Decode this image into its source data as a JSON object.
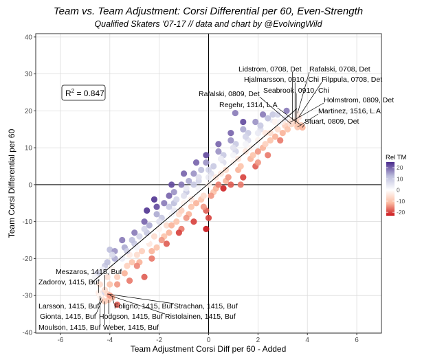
{
  "chart_data": {
    "type": "scatter",
    "title": "Team vs. Team Adjustment: Corsi Differential per 60, Even-Strength",
    "subtitle": "Qualified Skaters '07-17  //  data and chart by @EvolvingWild",
    "xlabel": "Team Adjustment Corsi Diff per 60 - Added",
    "ylabel": "Team Corsi Differential per 60",
    "xlim": [
      -7,
      7
    ],
    "ylim": [
      -40.2,
      40.9
    ],
    "x_ticks": [
      -6,
      -4,
      -2,
      0,
      2,
      4,
      6
    ],
    "y_ticks": [
      -40,
      -30,
      -20,
      -10,
      0,
      10,
      20,
      30,
      40
    ],
    "x_tick_labels": [
      "-6",
      "-4",
      "-2",
      "0",
      "2",
      "4",
      "6"
    ],
    "y_tick_labels": [
      "-40",
      "-30",
      "-20",
      "-10",
      "0",
      "10",
      "20",
      "30",
      "40"
    ],
    "grid": true,
    "annotation": {
      "r2_label": "R",
      "r2_sup": "2",
      "r2_value": " = 0.847"
    },
    "fit_line": {
      "intercept": 0.3,
      "slope": 5.67,
      "x_range": [
        -4.72,
        3.58
      ]
    },
    "legend": {
      "title": "Rel TM",
      "placement": "right",
      "ticks": [
        20,
        10,
        0,
        -10,
        -20
      ],
      "tick_labels": [
        "20",
        "10",
        "0",
        "-10",
        "-20"
      ],
      "range": [
        -23,
        25
      ],
      "colors": {
        "low": "#cb181d",
        "mid_low": "#fcbba1",
        "mid": "#ffffff",
        "mid_high": "#bcbddc",
        "high": "#4a2a8c"
      }
    },
    "point_fields": [
      "x",
      "y",
      "rel_tm"
    ],
    "points": [
      [
        -4.0,
        -17.6,
        12
      ],
      [
        -4.5,
        -24,
        8
      ],
      [
        -4.4,
        -27,
        -6
      ],
      [
        -4.6,
        -25,
        2
      ],
      [
        -4.2,
        -22,
        10
      ],
      [
        -4.1,
        -25,
        -5
      ],
      [
        -4.3,
        -23,
        3
      ],
      [
        -4.0,
        -27,
        -10
      ],
      [
        -4.1,
        -21,
        12
      ],
      [
        -3.8,
        -20,
        14
      ],
      [
        -3.9,
        -23,
        -2
      ],
      [
        -3.7,
        -25,
        -8
      ],
      [
        -3.8,
        -18,
        16
      ],
      [
        -3.6,
        -22,
        0
      ],
      [
        -3.7,
        -27,
        -14
      ],
      [
        -3.9,
        -19,
        7
      ],
      [
        -3.4,
        -17,
        14
      ],
      [
        -3.5,
        -20,
        4
      ],
      [
        -3.3,
        -22,
        -8
      ],
      [
        -3.4,
        -24,
        -12
      ],
      [
        -3.2,
        -19,
        -3
      ],
      [
        -3.5,
        -15,
        18
      ],
      [
        -3.3,
        -18,
        9
      ],
      [
        -3.1,
        -21,
        -10
      ],
      [
        -3.2,
        -26,
        -16
      ],
      [
        -3.0,
        -16,
        10
      ],
      [
        -2.9,
        -19,
        -6
      ],
      [
        -3.0,
        -13,
        18
      ],
      [
        -2.8,
        -21,
        -12
      ],
      [
        -2.9,
        -17,
        2
      ],
      [
        -3.1,
        -15,
        12
      ],
      [
        -2.8,
        -14,
        8
      ],
      [
        -2.7,
        -18,
        -8
      ],
      [
        -2.9,
        -22,
        -15
      ],
      [
        -2.6,
        -25,
        -18
      ],
      [
        -2.5,
        -13,
        10
      ],
      [
        -2.4,
        -16,
        -4
      ],
      [
        -2.6,
        -10,
        20
      ],
      [
        -2.3,
        -18,
        -12
      ],
      [
        -2.5,
        -15,
        0
      ],
      [
        -2.4,
        -11,
        14
      ],
      [
        -2.2,
        -14,
        -6
      ],
      [
        -2.6,
        -12,
        8
      ],
      [
        -2.3,
        -20,
        -16
      ],
      [
        -2.1,
        -17,
        -10
      ],
      [
        -2.5,
        -7,
        24
      ],
      [
        -2.0,
        -12,
        -2
      ],
      [
        -1.9,
        -9,
        10
      ],
      [
        -2.1,
        -6,
        22
      ],
      [
        -1.8,
        -14,
        -10
      ],
      [
        -2.0,
        -10,
        6
      ],
      [
        -1.9,
        -15,
        -14
      ],
      [
        -1.7,
        -11,
        -6
      ],
      [
        -2.1,
        -8,
        14
      ],
      [
        -1.8,
        -5,
        18
      ],
      [
        -1.6,
        -13,
        -12
      ],
      [
        -2.2,
        -4,
        24
      ],
      [
        -1.7,
        -16,
        -18
      ],
      [
        -1.5,
        -8,
        2
      ],
      [
        -1.4,
        -5,
        12
      ],
      [
        -1.6,
        -3,
        20
      ],
      [
        -1.3,
        -10,
        -10
      ],
      [
        -1.5,
        -11,
        -12
      ],
      [
        -1.4,
        -7,
        4
      ],
      [
        -1.2,
        -8,
        -6
      ],
      [
        -1.6,
        -6,
        10
      ],
      [
        -1.3,
        -4,
        8
      ],
      [
        -1.1,
        -12,
        -16
      ],
      [
        -1.5,
        0,
        22
      ],
      [
        -1.2,
        -13,
        -20
      ],
      [
        -1.4,
        -2,
        16
      ],
      [
        -1.0,
        -5,
        -2
      ],
      [
        -0.9,
        -2,
        10
      ],
      [
        -1.1,
        0,
        18
      ],
      [
        -0.8,
        -8,
        -12
      ],
      [
        -1.0,
        -3,
        6
      ],
      [
        -0.9,
        -9,
        -14
      ],
      [
        -0.7,
        -4,
        -4
      ],
      [
        -1.1,
        -7,
        -8
      ],
      [
        -0.8,
        1,
        14
      ],
      [
        -0.6,
        -10,
        -20
      ],
      [
        -1.0,
        3,
        20
      ],
      [
        -0.7,
        -6,
        -10
      ],
      [
        -0.9,
        -1,
        4
      ],
      [
        -0.5,
        -2,
        0
      ],
      [
        -0.4,
        1,
        8
      ],
      [
        -0.6,
        3,
        16
      ],
      [
        -0.3,
        -4,
        -10
      ],
      [
        -0.5,
        -5,
        -12
      ],
      [
        -0.4,
        -1,
        2
      ],
      [
        -0.2,
        -3,
        -6
      ],
      [
        -0.6,
        0,
        10
      ],
      [
        -0.3,
        4,
        12
      ],
      [
        -0.1,
        -7,
        -18
      ],
      [
        -0.5,
        6,
        20
      ],
      [
        -0.2,
        -6,
        -14
      ],
      [
        -0.4,
        2,
        6
      ],
      [
        0.0,
        -9,
        -20
      ],
      [
        -0.1,
        -12,
        -24
      ],
      [
        0.0,
        0,
        -2
      ],
      [
        0.1,
        3,
        6
      ],
      [
        -0.1,
        6,
        16
      ],
      [
        0.2,
        -2,
        -10
      ],
      [
        0.0,
        2,
        4
      ],
      [
        0.2,
        5,
        10
      ],
      [
        0.3,
        -1,
        -12
      ],
      [
        -0.1,
        8,
        22
      ],
      [
        0.1,
        -3,
        -14
      ],
      [
        0.3,
        2,
        -4
      ],
      [
        0.4,
        0,
        -16
      ],
      [
        0.0,
        4,
        8
      ],
      [
        0.5,
        3,
        -4
      ],
      [
        0.6,
        6,
        6
      ],
      [
        0.4,
        9,
        16
      ],
      [
        0.7,
        1,
        -12
      ],
      [
        0.5,
        5,
        0
      ],
      [
        0.6,
        8,
        10
      ],
      [
        0.8,
        2,
        -14
      ],
      [
        0.4,
        11,
        20
      ],
      [
        0.7,
        4,
        -6
      ],
      [
        0.9,
        0,
        -18
      ],
      [
        0.5,
        7,
        4
      ],
      [
        0.6,
        -1,
        -22
      ],
      [
        1.0,
        6,
        -2
      ],
      [
        1.1,
        9,
        8
      ],
      [
        0.9,
        12,
        16
      ],
      [
        1.2,
        4,
        -12
      ],
      [
        1.0,
        8,
        2
      ],
      [
        1.1,
        11,
        10
      ],
      [
        1.3,
        5,
        -10
      ],
      [
        0.9,
        14,
        20
      ],
      [
        1.2,
        7,
        -4
      ],
      [
        1.4,
        2,
        -20
      ],
      [
        1.0,
        10,
        6
      ],
      [
        1.3,
        0,
        -16
      ],
      [
        1.08,
        19.4,
        18
      ],
      [
        1.5,
        9,
        -4
      ],
      [
        1.6,
        12,
        6
      ],
      [
        1.4,
        15,
        14
      ],
      [
        1.7,
        7,
        -12
      ],
      [
        1.5,
        11,
        2
      ],
      [
        1.6,
        14,
        10
      ],
      [
        1.8,
        8,
        -10
      ],
      [
        1.4,
        17,
        22
      ],
      [
        1.7,
        10,
        -2
      ],
      [
        1.9,
        5,
        -18
      ],
      [
        1.5,
        13,
        8
      ],
      [
        2.0,
        6,
        -14
      ],
      [
        2.0,
        12,
        -2
      ],
      [
        2.1,
        15,
        6
      ],
      [
        1.9,
        17,
        16
      ],
      [
        2.2,
        10,
        -12
      ],
      [
        2.0,
        14,
        4
      ],
      [
        2.1,
        16,
        10
      ],
      [
        2.3,
        11,
        -8
      ],
      [
        2.2,
        19,
        18
      ],
      [
        2.4,
        8,
        -16
      ],
      [
        2.0,
        9,
        -14
      ],
      [
        2.5,
        12,
        -10
      ],
      [
        2.3,
        14,
        -4
      ],
      [
        2.5,
        14,
        -6
      ],
      [
        2.6,
        17,
        4
      ],
      [
        2.4,
        18,
        12
      ],
      [
        2.7,
        13,
        -12
      ],
      [
        2.5,
        16,
        0
      ],
      [
        2.6,
        19,
        10
      ],
      [
        2.8,
        15,
        -6
      ],
      [
        2.9,
        12,
        -16
      ],
      [
        2.7,
        17,
        -2
      ],
      [
        3.0,
        14,
        -12
      ],
      [
        2.8,
        19,
        8
      ],
      [
        3.1,
        16,
        -8
      ],
      [
        3.0,
        17,
        -4
      ],
      [
        3.1,
        18,
        4
      ],
      [
        3.2,
        15,
        -10
      ],
      [
        2.9,
        17,
        2
      ],
      [
        3.16,
        20,
        18
      ],
      [
        -3.7,
        -32.5,
        -18
      ],
      [
        -4.35,
        -29.5,
        8
      ]
    ],
    "labeled_points": [
      {
        "label": "Lidstrom, 0708, Det",
        "x": 3.4,
        "y": 17.5,
        "rel_tm": -4
      },
      {
        "label": "Rafalski, 0708, Det",
        "x": 3.6,
        "y": 19.3,
        "rel_tm": -3
      },
      {
        "label": "Hjalmarsson, 0910, Chi",
        "x": 3.5,
        "y": 16.5,
        "rel_tm": -6
      },
      {
        "label": "Filppula, 0708, Det",
        "x": 3.65,
        "y": 18.3,
        "rel_tm": -5
      },
      {
        "label": "Seabrook, 0910, Chi",
        "x": 3.55,
        "y": 17.1,
        "rel_tm": -8
      },
      {
        "label": "Rafalski, 0809, Det",
        "x": 3.35,
        "y": 16.4,
        "rel_tm": -7
      },
      {
        "label": "Regehr, 1314, L.A",
        "x": 3.75,
        "y": 16.1,
        "rel_tm": -9
      },
      {
        "label": "Holmstrom, 0809, Det",
        "x": 3.3,
        "y": 16.9,
        "rel_tm": -5
      },
      {
        "label": "Martinez, 1516, L.A",
        "x": 3.6,
        "y": 15.6,
        "rel_tm": -10
      },
      {
        "label": "Stuart, 0809, Det",
        "x": 3.8,
        "y": 15.5,
        "rel_tm": -12
      },
      {
        "label": "Meszaros, 1415, Buf",
        "x": -4.2,
        "y": -28.5,
        "rel_tm": -6
      },
      {
        "label": "Zadorov, 1415, Buf",
        "x": -4.45,
        "y": -29.3,
        "rel_tm": -3
      },
      {
        "label": "Larsson, 1415, Buf",
        "x": -4.35,
        "y": -30.6,
        "rel_tm": -4
      },
      {
        "label": "Gionta, 1415, Buf",
        "x": -4.3,
        "y": -31.1,
        "rel_tm": -5
      },
      {
        "label": "Moulson, 1415, Buf",
        "x": -4.4,
        "y": -30.1,
        "rel_tm": -2
      },
      {
        "label": "Foligno, 1415, Buf",
        "x": -3.9,
        "y": -30.5,
        "rel_tm": -12
      },
      {
        "label": "Strachan, 1415, Buf",
        "x": -4.1,
        "y": -29.6,
        "rel_tm": -7
      },
      {
        "label": "Hodgson, 1415, Buf",
        "x": -4.05,
        "y": -31.2,
        "rel_tm": -9
      },
      {
        "label": "Ristolainen, 1415, Buf",
        "x": -4.0,
        "y": -30.0,
        "rel_tm": -14
      },
      {
        "label": "Weber, 1415, Buf",
        "x": -4.2,
        "y": -31.6,
        "rel_tm": -8
      }
    ]
  }
}
